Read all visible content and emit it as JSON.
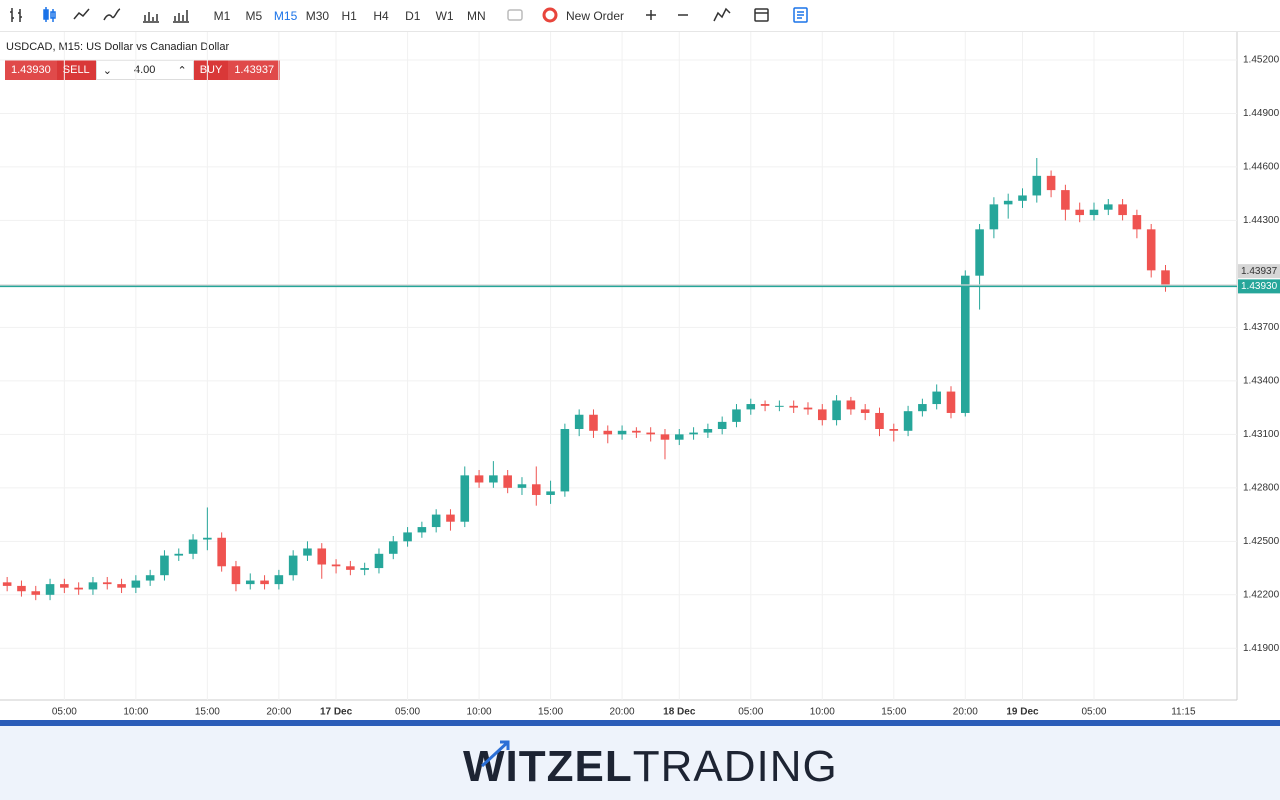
{
  "toolbar": {
    "timeframes": [
      "M1",
      "M5",
      "M15",
      "M30",
      "H1",
      "H4",
      "D1",
      "W1",
      "MN"
    ],
    "active_index": 2,
    "new_order": "New Order"
  },
  "trade_panel": {
    "sell_price": "1.43930",
    "sell_label": "SELL",
    "volume": "4.00",
    "buy_label": "BUY",
    "buy_price": "1.43937"
  },
  "chart_data": {
    "type": "candlestick",
    "title": "USDCAD, M15: US Dollar vs Canadian Dollar",
    "up_color": "#26a69a",
    "down_color": "#ef5350",
    "grid": true,
    "x": [
      -23,
      -22,
      -21,
      -20,
      -19,
      -18,
      -17,
      -16,
      -15,
      -14,
      -13,
      -12,
      -11,
      -10,
      -9,
      -8,
      -7,
      -6,
      -5,
      -4,
      -3,
      -2,
      -1,
      0,
      1,
      2,
      3,
      4,
      5,
      6,
      7,
      8,
      9,
      10,
      11,
      12,
      13,
      14,
      15,
      16,
      17,
      18,
      19,
      20,
      21,
      22,
      23,
      24,
      25,
      26,
      27,
      28,
      29,
      30,
      31,
      32,
      33,
      34,
      35,
      36,
      37,
      38,
      39,
      40,
      41,
      42,
      43,
      44,
      45,
      46,
      47,
      48,
      49,
      50,
      51,
      52,
      53,
      54,
      55,
      56,
      57,
      58
    ],
    "open": [
      1.4227,
      1.4225,
      1.4222,
      1.422,
      1.4226,
      1.4224,
      1.4223,
      1.4227,
      1.4226,
      1.4224,
      1.4228,
      1.4231,
      1.4242,
      1.4243,
      1.4251,
      1.4252,
      1.4236,
      1.4226,
      1.4228,
      1.4226,
      1.4231,
      1.4242,
      1.4246,
      1.4237,
      1.4236,
      1.4234,
      1.4235,
      1.4243,
      1.425,
      1.4255,
      1.4258,
      1.4265,
      1.4261,
      1.4287,
      1.4283,
      1.4287,
      1.428,
      1.4282,
      1.4276,
      1.4278,
      1.4313,
      1.4321,
      1.4312,
      1.431,
      1.4312,
      1.4311,
      1.431,
      1.4307,
      1.431,
      1.4311,
      1.4313,
      1.4317,
      1.4324,
      1.4327,
      1.4326,
      1.4326,
      1.4325,
      1.4324,
      1.4318,
      1.4329,
      1.4324,
      1.4322,
      1.4313,
      1.4312,
      1.4323,
      1.4327,
      1.4334,
      1.4322,
      1.4399,
      1.4425,
      1.4439,
      1.4441,
      1.4444,
      1.4455,
      1.4447,
      1.4436,
      1.4433,
      1.4436,
      1.4439,
      1.4433,
      1.4425,
      1.4402
    ],
    "high": [
      1.423,
      1.4228,
      1.4225,
      1.4229,
      1.4229,
      1.4227,
      1.423,
      1.423,
      1.4229,
      1.4231,
      1.4234,
      1.4245,
      1.4246,
      1.4254,
      1.4269,
      1.4255,
      1.4239,
      1.4232,
      1.4231,
      1.4234,
      1.4245,
      1.425,
      1.4249,
      1.424,
      1.4239,
      1.4238,
      1.4246,
      1.4253,
      1.4258,
      1.4261,
      1.4268,
      1.4268,
      1.4292,
      1.429,
      1.4295,
      1.429,
      1.4286,
      1.4292,
      1.4284,
      1.4316,
      1.4324,
      1.4324,
      1.4315,
      1.4315,
      1.4314,
      1.4314,
      1.4313,
      1.4313,
      1.4314,
      1.4316,
      1.432,
      1.4327,
      1.433,
      1.4329,
      1.4329,
      1.4329,
      1.4328,
      1.4327,
      1.4332,
      1.4331,
      1.4327,
      1.4325,
      1.4316,
      1.4326,
      1.433,
      1.4338,
      1.4337,
      1.4402,
      1.4428,
      1.4443,
      1.4445,
      1.4448,
      1.4465,
      1.4458,
      1.445,
      1.444,
      1.444,
      1.4442,
      1.4442,
      1.4436,
      1.4428,
      1.4405
    ],
    "low": [
      1.4222,
      1.4219,
      1.4217,
      1.4217,
      1.4221,
      1.422,
      1.422,
      1.4223,
      1.4221,
      1.4221,
      1.4225,
      1.4228,
      1.4239,
      1.424,
      1.4245,
      1.4233,
      1.4222,
      1.4223,
      1.4223,
      1.4223,
      1.4228,
      1.4239,
      1.4229,
      1.4232,
      1.4231,
      1.4231,
      1.4232,
      1.424,
      1.4247,
      1.4252,
      1.4255,
      1.4256,
      1.4258,
      1.428,
      1.428,
      1.4277,
      1.4276,
      1.427,
      1.4271,
      1.4275,
      1.4309,
      1.4308,
      1.4305,
      1.4307,
      1.4308,
      1.4306,
      1.4296,
      1.4304,
      1.4307,
      1.4308,
      1.431,
      1.4314,
      1.4321,
      1.4323,
      1.4323,
      1.4322,
      1.4321,
      1.4315,
      1.4315,
      1.4321,
      1.4318,
      1.4309,
      1.4306,
      1.4309,
      1.432,
      1.4324,
      1.4319,
      1.432,
      1.438,
      1.442,
      1.4431,
      1.4437,
      1.444,
      1.4443,
      1.443,
      1.4429,
      1.443,
      1.4433,
      1.443,
      1.442,
      1.4398,
      1.439
    ],
    "close": [
      1.4225,
      1.4222,
      1.422,
      1.4226,
      1.4224,
      1.4223,
      1.4227,
      1.4226,
      1.4224,
      1.4228,
      1.4231,
      1.4242,
      1.4243,
      1.4251,
      1.4252,
      1.4236,
      1.4226,
      1.4228,
      1.4226,
      1.4231,
      1.4242,
      1.4246,
      1.4237,
      1.4236,
      1.4234,
      1.4235,
      1.4243,
      1.425,
      1.4255,
      1.4258,
      1.4265,
      1.4261,
      1.4287,
      1.4283,
      1.4287,
      1.428,
      1.4282,
      1.4276,
      1.4278,
      1.4313,
      1.4321,
      1.4312,
      1.431,
      1.4312,
      1.4311,
      1.431,
      1.4307,
      1.431,
      1.4311,
      1.4313,
      1.4317,
      1.4324,
      1.4327,
      1.4326,
      1.4326,
      1.4325,
      1.4324,
      1.4318,
      1.4329,
      1.4324,
      1.4322,
      1.4313,
      1.4312,
      1.4323,
      1.4327,
      1.4334,
      1.4322,
      1.4399,
      1.4425,
      1.4439,
      1.4441,
      1.4444,
      1.4455,
      1.4447,
      1.4436,
      1.4433,
      1.4436,
      1.4439,
      1.4433,
      1.4425,
      1.4402,
      1.4393
    ],
    "xlim": [
      -23.5,
      63
    ],
    "xticks": [
      {
        "value": -19,
        "label": "05:00"
      },
      {
        "value": -14,
        "label": "10:00"
      },
      {
        "value": -9,
        "label": "15:00"
      },
      {
        "value": -4,
        "label": "20:00"
      },
      {
        "value": 0,
        "label": "17 Dec"
      },
      {
        "value": 5,
        "label": "05:00"
      },
      {
        "value": 10,
        "label": "10:00"
      },
      {
        "value": 15,
        "label": "15:00"
      },
      {
        "value": 20,
        "label": "20:00"
      },
      {
        "value": 24,
        "label": "18 Dec"
      },
      {
        "value": 29,
        "label": "05:00"
      },
      {
        "value": 34,
        "label": "10:00"
      },
      {
        "value": 39,
        "label": "15:00"
      },
      {
        "value": 44,
        "label": "20:00"
      },
      {
        "value": 48,
        "label": "19 Dec"
      },
      {
        "value": 53,
        "label": "05:00"
      },
      {
        "value": 59.25,
        "label": "11:15"
      }
    ],
    "ylim": [
      1.4161,
      1.4534
    ],
    "yticks": [
      {
        "value": 1.419,
        "label": "1.41900"
      },
      {
        "value": 1.422,
        "label": "1.42200"
      },
      {
        "value": 1.425,
        "label": "1.42500"
      },
      {
        "value": 1.428,
        "label": "1.42800"
      },
      {
        "value": 1.431,
        "label": "1.43100"
      },
      {
        "value": 1.434,
        "label": "1.43400"
      },
      {
        "value": 1.437,
        "label": "1.43700"
      },
      {
        "value": 1.443,
        "label": "1.44300"
      },
      {
        "value": 1.446,
        "label": "1.44600"
      },
      {
        "value": 1.449,
        "label": "1.44900"
      },
      {
        "value": 1.452,
        "label": "1.45200"
      }
    ],
    "price_lines": [
      {
        "value": 1.43937,
        "label": "1.43937",
        "color": "#d6d6d6"
      },
      {
        "value": 1.4393,
        "label": "1.43930",
        "color": "#26a69a"
      }
    ]
  },
  "footer": {
    "brand_bold": "WITZEL",
    "brand_light": "TRADING"
  }
}
